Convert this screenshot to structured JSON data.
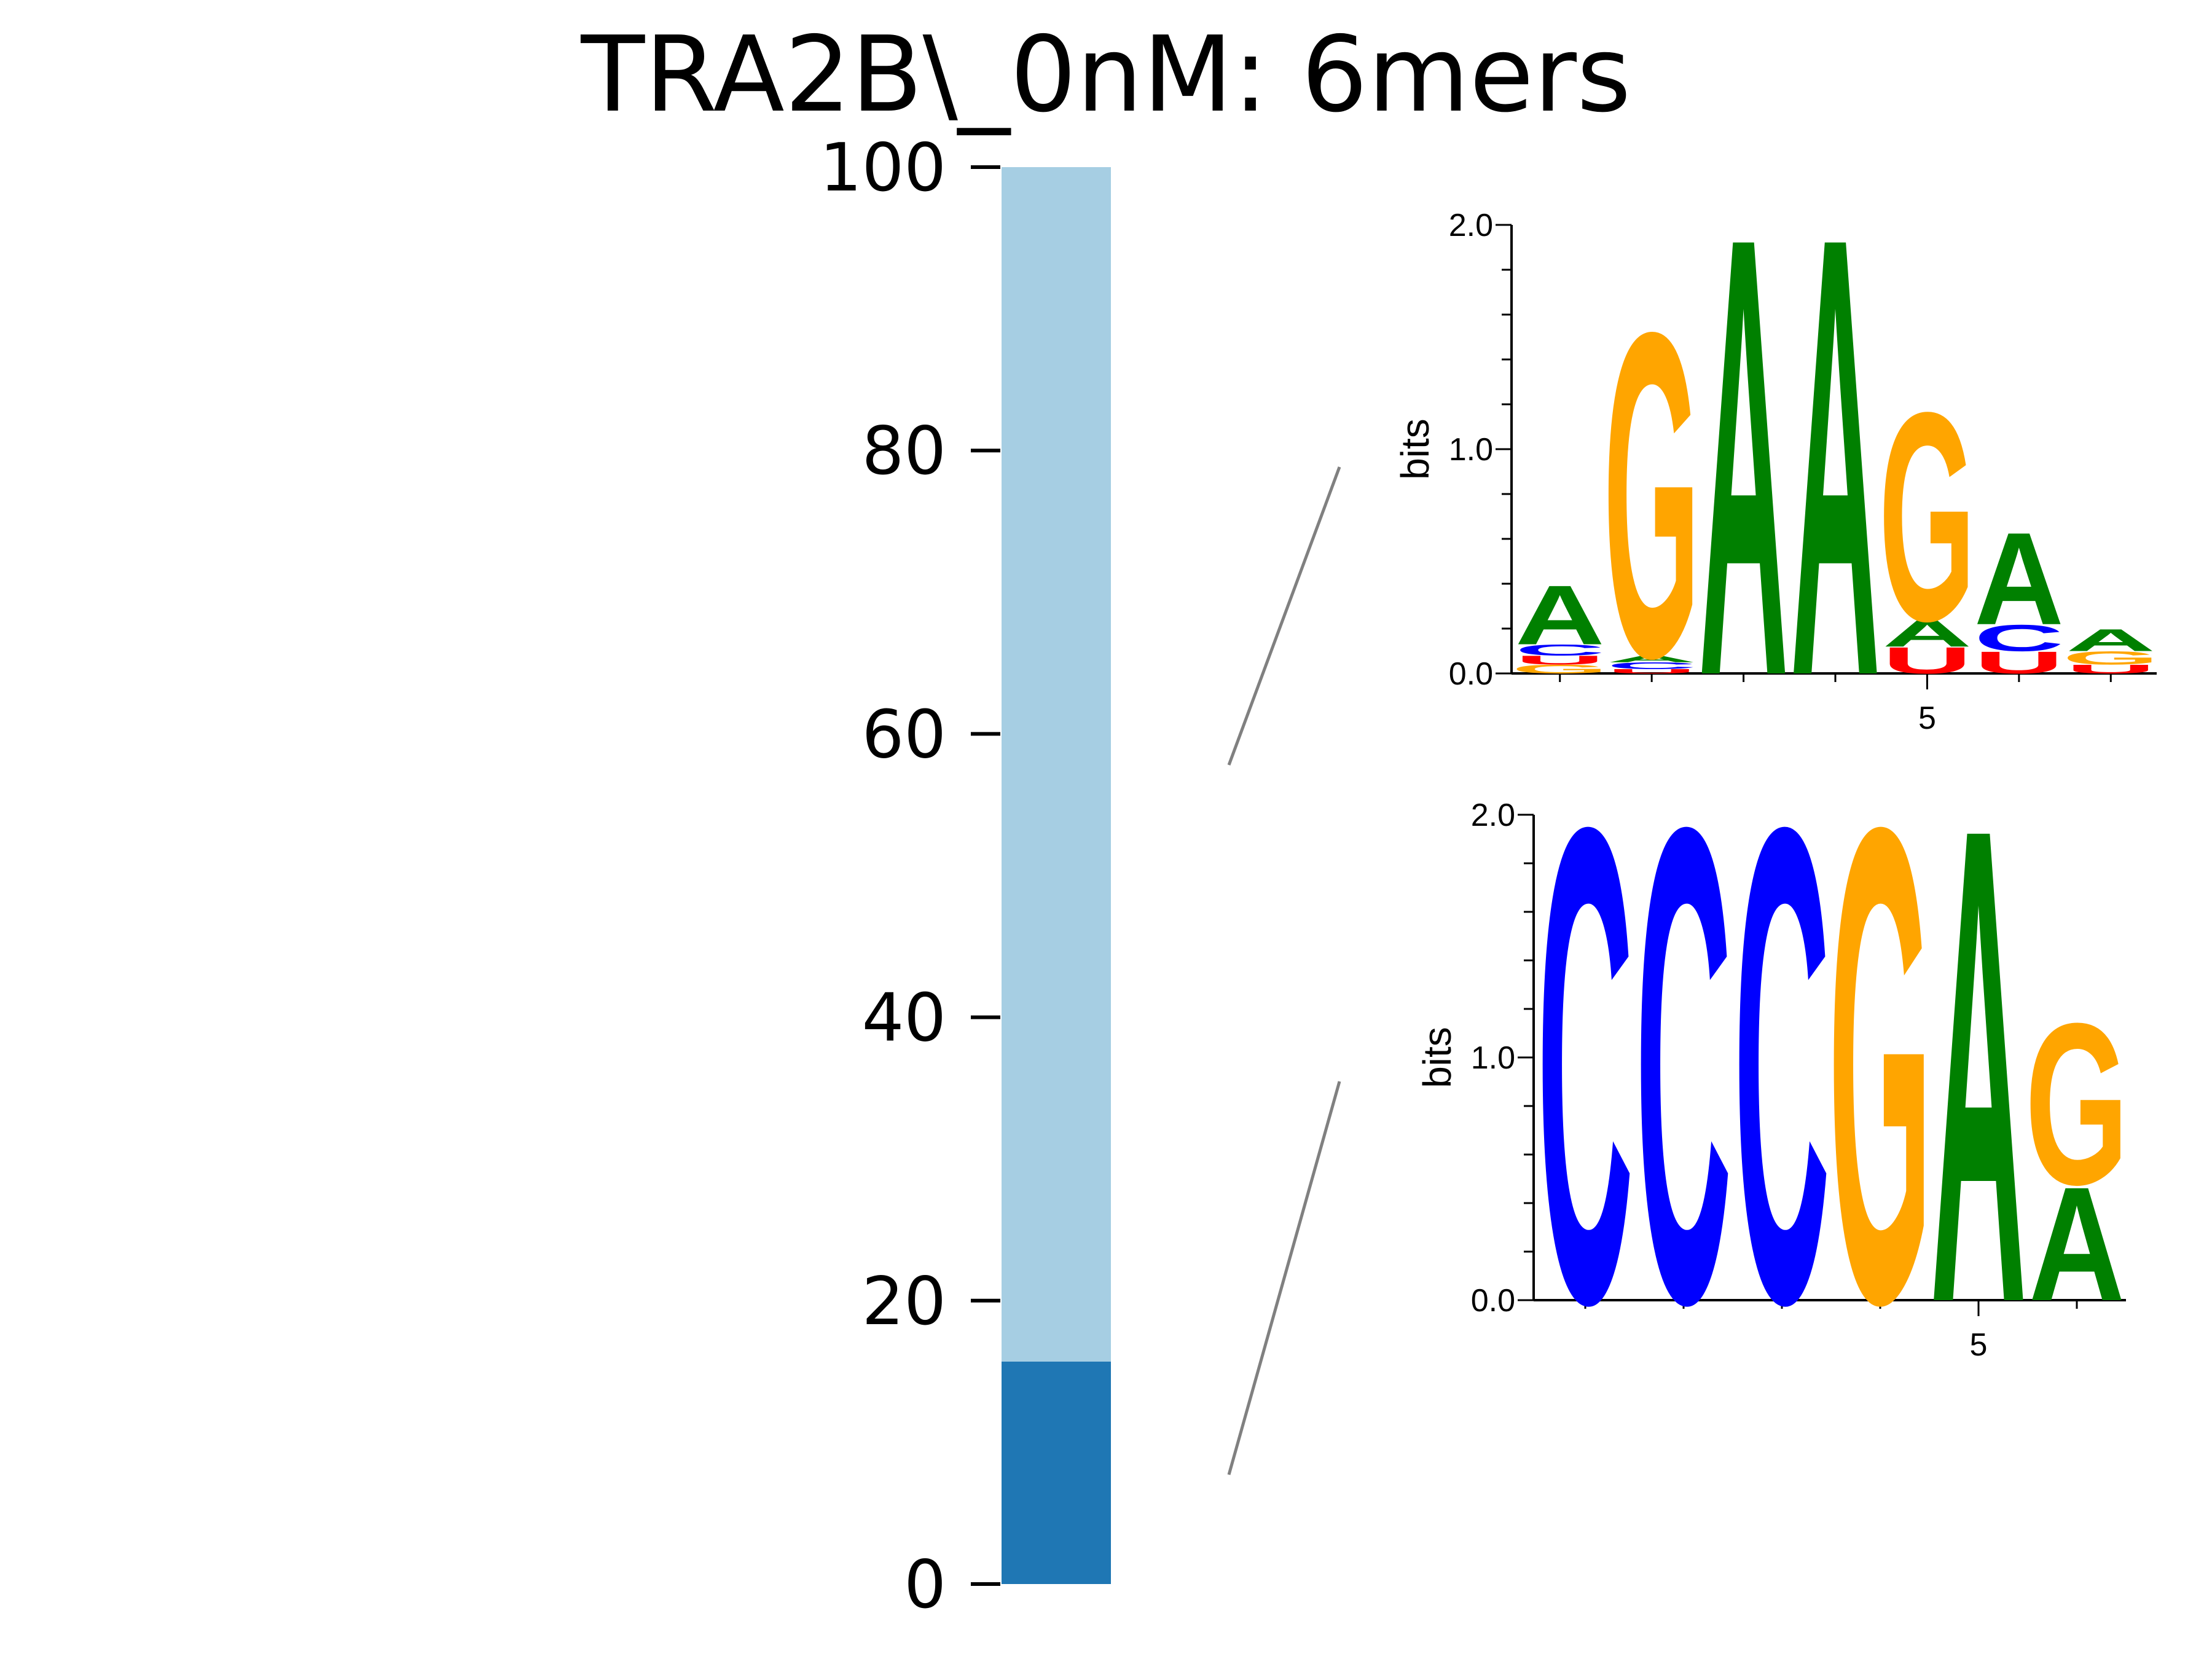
{
  "chart_data": [
    {
      "type": "bar",
      "subtype": "stacked-100",
      "title": "TRA2B\\_0nM: 6mers",
      "ylim": [
        0,
        100
      ],
      "yticks": [
        "0",
        "20",
        "40",
        "60",
        "80",
        "100"
      ],
      "segments": [
        {
          "value": 15.7,
          "color": "#1f77b4"
        },
        {
          "value": 84.3,
          "color": "#a6cee3"
        }
      ]
    },
    {
      "type": "sequence-logo",
      "ylabel": "bits",
      "ylim": [
        0,
        2.0
      ],
      "yticks": [
        "0.0",
        "1.0",
        "2.0"
      ],
      "xticks": [
        {
          "pos": 5,
          "label": "5"
        }
      ],
      "positions": [
        [
          {
            "base": "G",
            "bits": 0.04
          },
          {
            "base": "U",
            "bits": 0.04
          },
          {
            "base": "C",
            "bits": 0.05
          },
          {
            "base": "A",
            "bits": 0.27
          }
        ],
        [
          {
            "base": "U",
            "bits": 0.02
          },
          {
            "base": "C",
            "bits": 0.03
          },
          {
            "base": "A",
            "bits": 0.03
          },
          {
            "base": "G",
            "bits": 1.48
          }
        ],
        [
          {
            "base": "A",
            "bits": 2.0
          }
        ],
        [
          {
            "base": "A",
            "bits": 2.0
          }
        ],
        [
          {
            "base": "U",
            "bits": 0.12
          },
          {
            "base": "A",
            "bits": 0.12
          },
          {
            "base": "G",
            "bits": 0.95
          }
        ],
        [
          {
            "base": "U",
            "bits": 0.1
          },
          {
            "base": "C",
            "bits": 0.12
          },
          {
            "base": "A",
            "bits": 0.42
          }
        ],
        [
          {
            "base": "U",
            "bits": 0.04
          },
          {
            "base": "G",
            "bits": 0.06
          },
          {
            "base": "A",
            "bits": 0.1
          }
        ]
      ]
    },
    {
      "type": "sequence-logo",
      "ylabel": "bits",
      "ylim": [
        0,
        2.0
      ],
      "yticks": [
        "0.0",
        "1.0",
        "2.0"
      ],
      "xticks": [
        {
          "pos": 5,
          "label": "5"
        }
      ],
      "positions": [
        [
          {
            "base": "C",
            "bits": 2.0
          }
        ],
        [
          {
            "base": "C",
            "bits": 2.0
          }
        ],
        [
          {
            "base": "C",
            "bits": 2.0
          }
        ],
        [
          {
            "base": "G",
            "bits": 2.0
          }
        ],
        [
          {
            "base": "A",
            "bits": 2.0
          }
        ],
        [
          {
            "base": "A",
            "bits": 0.48
          },
          {
            "base": "G",
            "bits": 0.68
          }
        ]
      ]
    }
  ],
  "colors": {
    "A": "#008000",
    "C": "#0000ff",
    "G": "#ffa500",
    "U": "#ff0000",
    "axis": "#000000",
    "connector": "#808080"
  }
}
